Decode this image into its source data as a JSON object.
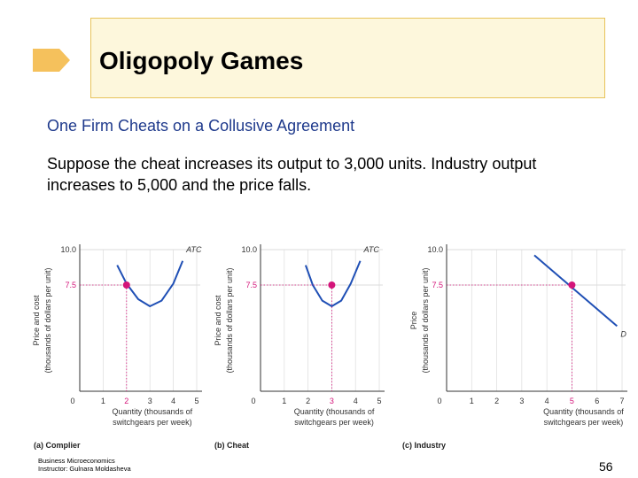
{
  "slide": {
    "title": "Oligopoly Games",
    "subtitle": "One Firm Cheats on a Collusive Agreement",
    "body": "Suppose the cheat increases its output to 3,000 units. Industry output increases to 5,000 and the price falls.",
    "footer_line1": "Business Microeconomics",
    "footer_line2": "Instructor: Gulnara Moldasheva",
    "page_number": "56",
    "accent_color": "#f5c15c",
    "title_box_color": "#fdf7dc",
    "subtitle_color": "#1f3a8c"
  },
  "chart_data": [
    {
      "type": "line",
      "panel_label": "(a) Complier",
      "ylabel_line1": "Price and cost",
      "ylabel_line2": "(thousands of dollars per unit)",
      "xlabel_line1": "Quantity (thousands of",
      "xlabel_line2": "switchgears per week)",
      "curve_label": "ATC",
      "origin_label": "0",
      "x_ticks": [
        "1",
        "2",
        "3",
        "4",
        "5"
      ],
      "xlim": [
        0,
        5
      ],
      "y_ticks": [
        "7.5",
        "10.0"
      ],
      "ylim": [
        0,
        10
      ],
      "highlight_x_tick": "2",
      "point": {
        "x": 2,
        "y": 7.5
      },
      "curve": {
        "x": [
          1.6,
          2.0,
          2.5,
          3.0,
          3.5,
          4.0,
          4.4
        ],
        "y": [
          8.9,
          7.6,
          6.5,
          6.0,
          6.4,
          7.6,
          9.2
        ]
      },
      "curve_color": "#1f4fb5",
      "point_color": "#d4157a"
    },
    {
      "type": "line",
      "panel_label": "(b) Cheat",
      "ylabel_line1": "Price and cost",
      "ylabel_line2": "(thousands of dollars per unit)",
      "xlabel_line1": "Quantity (thousands of",
      "xlabel_line2": "switchgears per week)",
      "curve_label": "ATC",
      "origin_label": "0",
      "x_ticks": [
        "1",
        "2",
        "3",
        "4",
        "5"
      ],
      "xlim": [
        0,
        5
      ],
      "y_ticks": [
        "7.5",
        "10.0"
      ],
      "ylim": [
        0,
        10
      ],
      "highlight_x_tick": "3",
      "point": {
        "x": 3,
        "y": 7.5
      },
      "curve": {
        "x": [
          1.9,
          2.2,
          2.6,
          3.0,
          3.4,
          3.8,
          4.2
        ],
        "y": [
          8.9,
          7.5,
          6.4,
          6.0,
          6.4,
          7.6,
          9.2
        ]
      },
      "curve_color": "#1f4fb5",
      "point_color": "#d4157a"
    },
    {
      "type": "line",
      "panel_label": "(c) Industry",
      "ylabel_line1": "Price",
      "ylabel_line2": "(thousands of dollars per unit)",
      "xlabel_line1": "Quantity (thousands of",
      "xlabel_line2": "switchgears per week)",
      "curve_label": "D",
      "origin_label": "0",
      "x_ticks": [
        "1",
        "2",
        "3",
        "4",
        "5",
        "6",
        "7"
      ],
      "xlim": [
        0,
        7
      ],
      "y_ticks": [
        "7.5",
        "10.0"
      ],
      "ylim": [
        0,
        10
      ],
      "highlight_x_tick": "5",
      "point": {
        "x": 5,
        "y": 7.5
      },
      "curve": {
        "x": [
          3.5,
          6.8
        ],
        "y": [
          9.6,
          4.6
        ]
      },
      "curve_color": "#1f4fb5",
      "point_color": "#d4157a"
    }
  ]
}
